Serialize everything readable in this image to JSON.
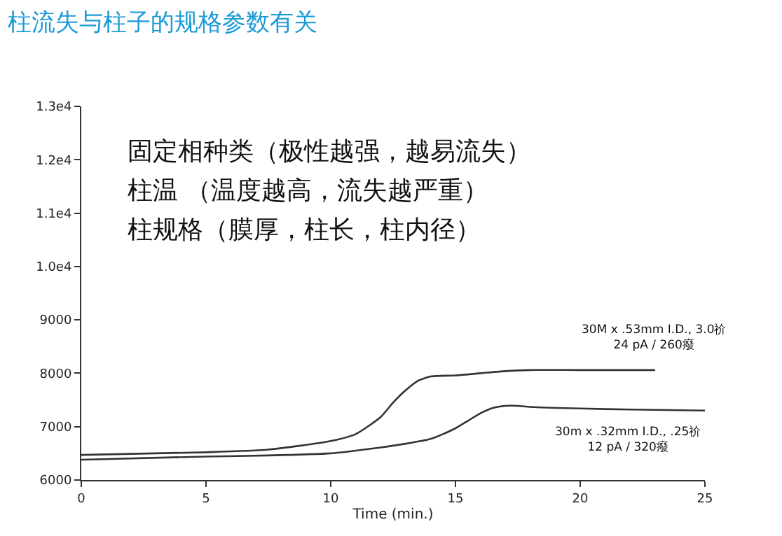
{
  "chart_data": {
    "type": "line",
    "title": "柱流失与柱子的规格参数有关",
    "xlabel": "Time (min.)",
    "xlim": [
      0,
      25
    ],
    "xticks": [
      0,
      5,
      10,
      15,
      20,
      25
    ],
    "ylim": [
      6000,
      13000
    ],
    "yticks": [
      6000,
      7000,
      8000,
      9000,
      {
        "value": 10000,
        "label": "1.0e4"
      },
      {
        "value": 11000,
        "label": "1.1e4"
      },
      {
        "value": 12000,
        "label": "1.2e4"
      },
      {
        "value": 13000,
        "label": "1.3e4"
      }
    ],
    "line_style": "solid",
    "marker": "none",
    "series": [
      {
        "color": "#333333",
        "x": [
          0,
          5,
          7.5,
          10,
          11,
          12,
          12.5,
          13,
          13.5,
          14,
          15,
          16,
          17,
          18,
          20,
          23
        ],
        "values": [
          6470,
          6520,
          6570,
          6730,
          6860,
          7180,
          7450,
          7680,
          7860,
          7940,
          7960,
          8000,
          8040,
          8060,
          8060,
          8060
        ]
      },
      {
        "color": "#333333",
        "x": [
          0,
          5,
          7.5,
          10,
          11,
          12,
          13,
          14,
          14.5,
          15,
          15.5,
          16,
          16.5,
          17,
          17.5,
          18,
          20,
          22,
          25
        ],
        "values": [
          6380,
          6440,
          6460,
          6500,
          6550,
          6610,
          6680,
          6770,
          6860,
          6970,
          7110,
          7250,
          7350,
          7390,
          7390,
          7370,
          7340,
          7320,
          7300
        ]
      }
    ],
    "annotations": [
      "固定相种类（极性越强，越易流失）",
      "柱温 （温度越高，流失越严重）",
      "柱规格（膜厚，柱长，柱内径）",
      {
        "text": "30M x .53mm I.D., 3.0祄\n24 pA / 260癈",
        "x": 23,
        "y": 8060
      },
      {
        "text": "30m x .32mm I.D., .25祄\n12 pA / 320癈",
        "x": 25,
        "y": 7300
      }
    ]
  }
}
